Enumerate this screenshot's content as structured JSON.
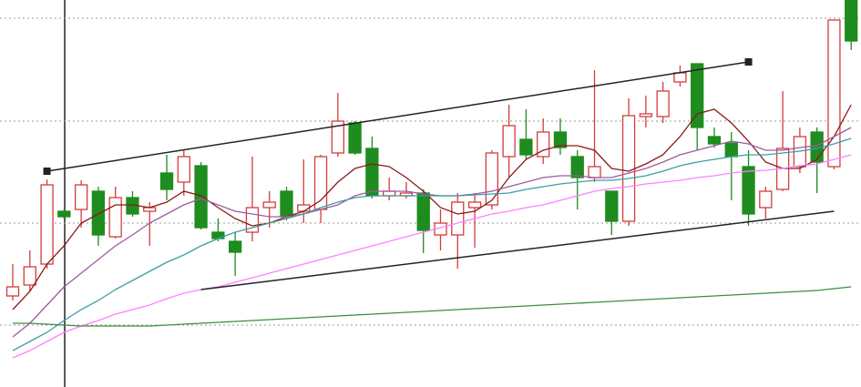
{
  "chart_data": {
    "type": "candlestick",
    "ylim": [
      0,
      425
    ],
    "grid_lines": [
      405,
      292,
      180,
      68
    ],
    "up_color": "#d43c3c",
    "down_color": "#1e8c1e",
    "candles": {
      "open": [
        100,
        112,
        135,
        193,
        195,
        215,
        165,
        208,
        193,
        235,
        225,
        243,
        170,
        160,
        170,
        197,
        215,
        193,
        195,
        257,
        290,
        262,
        210,
        210,
        213,
        167,
        167,
        197,
        200,
        253,
        272,
        253,
        280,
        253,
        230,
        215,
        182,
        297,
        297,
        335,
        355,
        275,
        268,
        242,
        197,
        217,
        242,
        280,
        242,
        425
      ],
      "high": [
        135,
        150,
        228,
        195,
        227,
        220,
        220,
        215,
        203,
        255,
        260,
        247,
        185,
        170,
        253,
        215,
        220,
        250,
        255,
        323,
        292,
        275,
        230,
        225,
        217,
        195,
        213,
        213,
        260,
        310,
        305,
        295,
        295,
        260,
        348,
        215,
        317,
        320,
        335,
        353,
        355,
        285,
        280,
        260,
        220,
        325,
        285,
        285,
        403,
        425
      ],
      "low": [
        95,
        105,
        130,
        185,
        175,
        155,
        163,
        187,
        155,
        205,
        210,
        173,
        160,
        122,
        160,
        175,
        183,
        180,
        180,
        253,
        255,
        207,
        205,
        207,
        147,
        150,
        130,
        153,
        195,
        230,
        250,
        245,
        255,
        195,
        225,
        167,
        177,
        285,
        290,
        330,
        260,
        263,
        205,
        177,
        185,
        215,
        235,
        213,
        239,
        370
      ],
      "close": [
        110,
        132,
        222,
        187,
        222,
        167,
        208,
        190,
        197,
        217,
        253,
        175,
        163,
        148,
        197,
        203,
        187,
        200,
        253,
        292,
        257,
        210,
        215,
        213,
        172,
        180,
        203,
        203,
        257,
        287,
        255,
        280,
        263,
        230,
        242,
        182,
        298,
        300,
        325,
        345,
        285,
        267,
        253,
        190,
        215,
        262,
        275,
        247,
        403,
        380
      ]
    },
    "series": [
      {
        "color": "#8b1a1a",
        "values": [
          85,
          105,
          135,
          155,
          180,
          190,
          200,
          200,
          197,
          203,
          215,
          210,
          197,
          185,
          177,
          180,
          187,
          193,
          205,
          225,
          240,
          245,
          242,
          230,
          215,
          197,
          190,
          193,
          205,
          230,
          250,
          260,
          265,
          265,
          260,
          240,
          237,
          245,
          255,
          275,
          300,
          305,
          290,
          270,
          247,
          240,
          240,
          250,
          275,
          310
        ]
      },
      {
        "color": "#a05aa0",
        "values": [
          55,
          70,
          90,
          110,
          125,
          140,
          155,
          167,
          180,
          190,
          200,
          207,
          200,
          193,
          190,
          187,
          187,
          190,
          195,
          200,
          210,
          215,
          215,
          215,
          212,
          210,
          210,
          212,
          215,
          220,
          225,
          230,
          232,
          232,
          230,
          230,
          235,
          240,
          247,
          255,
          260,
          265,
          270,
          267,
          260,
          260,
          263,
          265,
          275,
          285
        ]
      },
      {
        "color": "#3a9fa5",
        "values": [
          40,
          50,
          60,
          73,
          85,
          95,
          107,
          117,
          127,
          137,
          145,
          155,
          163,
          170,
          175,
          180,
          185,
          190,
          197,
          203,
          208,
          210,
          210,
          210,
          210,
          210,
          210,
          211,
          212,
          213,
          217,
          220,
          223,
          225,
          227,
          227,
          229,
          232,
          237,
          243,
          247,
          250,
          253,
          255,
          255,
          257,
          259,
          262,
          267,
          273
        ]
      },
      {
        "color": "#ff80ff",
        "values": [
          32,
          40,
          50,
          60,
          67,
          73,
          80,
          85,
          90,
          97,
          103,
          107,
          110,
          115,
          120,
          125,
          130,
          135,
          140,
          145,
          150,
          155,
          160,
          165,
          170,
          175,
          180,
          185,
          190,
          193,
          197,
          200,
          205,
          210,
          215,
          218,
          220,
          223,
          225,
          227,
          230,
          232,
          235,
          237,
          238,
          240,
          243,
          245,
          250,
          255
        ]
      },
      {
        "color": "#3d8f3d",
        "values": [
          70,
          70,
          69,
          68,
          67,
          67,
          67,
          67,
          67,
          68,
          69,
          70,
          71,
          72,
          73,
          74,
          75,
          76,
          77,
          78,
          79,
          80,
          81,
          82,
          83,
          84,
          85,
          86,
          87,
          88,
          89,
          90,
          91,
          92,
          93,
          94,
          95,
          96,
          97,
          98,
          99,
          100,
          101,
          102,
          103,
          104,
          105,
          106,
          108,
          110
        ]
      }
    ],
    "trendlines": [
      {
        "color": "#222222",
        "x": [
          2,
          43
        ],
        "y": [
          237,
          357
        ],
        "end_markers": true
      },
      {
        "color": "#222222",
        "x": [
          11,
          48
        ],
        "y": [
          107,
          193
        ],
        "end_markers": false
      }
    ]
  }
}
